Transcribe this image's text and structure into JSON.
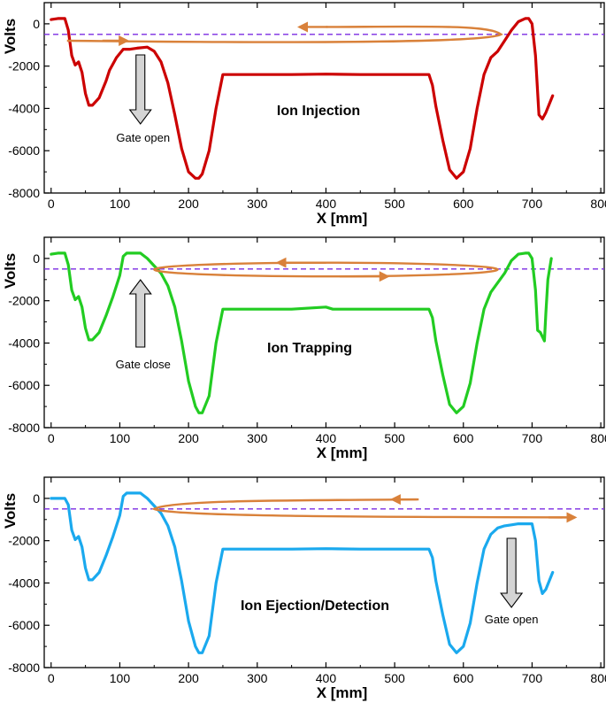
{
  "colors": {
    "injection": "#cc0000",
    "trapping": "#22cc22",
    "ejection": "#1aa9ee",
    "dashed_reference": "#7b2be2",
    "ion_path": "#d9813a",
    "gate_arrow_fill": "#d4d4d4"
  },
  "chart_data": [
    {
      "type": "line",
      "panel_label": "Ion Injection",
      "xlabel": "X [mm]",
      "ylabel": "Volts",
      "xlim": [
        -10,
        805
      ],
      "ylim": [
        -8000,
        1000
      ],
      "xticks": [
        0,
        100,
        200,
        300,
        400,
        500,
        600,
        700,
        800
      ],
      "yticks": [
        0,
        -2000,
        -4000,
        -6000,
        -8000
      ],
      "xtick_labels": [
        "0",
        "100",
        "200",
        "300",
        "400",
        "500",
        "600",
        "700",
        "800"
      ],
      "ytick_labels": [
        "0",
        "-2000",
        "-4000",
        "-6000",
        "-8000"
      ],
      "reference_line_y": -500,
      "gate_note": {
        "text": "Gate open",
        "direction": "down",
        "x": 130
      },
      "ion_path": {
        "shape": "turnaround-right",
        "start_x": 0,
        "start_y": -800,
        "end_x": 400,
        "end_y": -150,
        "turn_x": 655
      },
      "series": [
        {
          "x": [
            0,
            10,
            20,
            25,
            30,
            35,
            40,
            45,
            50,
            55,
            60,
            70,
            80,
            85,
            95,
            105,
            115,
            125,
            140,
            150,
            160,
            170,
            180,
            190,
            200,
            210,
            215,
            220,
            230,
            240,
            250,
            260,
            300,
            350,
            400,
            450,
            500,
            550,
            555,
            560,
            570,
            580,
            590,
            600,
            610,
            620,
            630,
            640,
            650,
            660,
            670,
            680,
            690,
            695,
            700,
            705,
            710,
            715,
            720,
            730
          ],
          "y": [
            200,
            250,
            250,
            -300,
            -1500,
            -1950,
            -1800,
            -2300,
            -3300,
            -3850,
            -3850,
            -3500,
            -2700,
            -2200,
            -1600,
            -1200,
            -1200,
            -1150,
            -1100,
            -1300,
            -1800,
            -2800,
            -4300,
            -5900,
            -7000,
            -7300,
            -7300,
            -7100,
            -6000,
            -4000,
            -2400,
            -2400,
            -2400,
            -2400,
            -2380,
            -2400,
            -2400,
            -2400,
            -2900,
            -3900,
            -5500,
            -6900,
            -7300,
            -7000,
            -5900,
            -4000,
            -2400,
            -1600,
            -1300,
            -800,
            -300,
            100,
            250,
            250,
            0,
            -1500,
            -4300,
            -4500,
            -4200,
            -3400
          ]
        }
      ]
    },
    {
      "type": "line",
      "panel_label": "Ion Trapping",
      "xlabel": "X [mm]",
      "ylabel": "Volts",
      "xlim": [
        -10,
        805
      ],
      "ylim": [
        -8000,
        1000
      ],
      "xticks": [
        0,
        100,
        200,
        300,
        400,
        500,
        600,
        700,
        800
      ],
      "yticks": [
        0,
        -2000,
        -4000,
        -6000,
        -8000
      ],
      "xtick_labels": [
        "0",
        "100",
        "200",
        "300",
        "400",
        "500",
        "600",
        "700",
        "800"
      ],
      "ytick_labels": [
        "0",
        "-2000",
        "-4000",
        "-6000",
        "-8000"
      ],
      "reference_line_y": -500,
      "gate_note": {
        "text": "Gate close",
        "direction": "up",
        "x": 130
      },
      "ion_path": {
        "shape": "closed-loop",
        "x_min": 150,
        "x_max": 650,
        "y_top": -200,
        "y_bottom": -850
      },
      "series": [
        {
          "x": [
            0,
            10,
            20,
            25,
            30,
            35,
            40,
            45,
            50,
            55,
            60,
            70,
            80,
            90,
            100,
            105,
            110,
            120,
            130,
            140,
            160,
            170,
            180,
            190,
            200,
            210,
            215,
            220,
            230,
            240,
            250,
            260,
            300,
            350,
            400,
            410,
            450,
            500,
            550,
            555,
            560,
            570,
            580,
            590,
            600,
            610,
            620,
            630,
            640,
            660,
            670,
            680,
            690,
            695,
            700,
            705,
            708,
            712,
            715,
            718,
            720,
            723,
            728
          ],
          "y": [
            200,
            250,
            250,
            -300,
            -1500,
            -1950,
            -1800,
            -2300,
            -3300,
            -3850,
            -3850,
            -3500,
            -2700,
            -1800,
            -800,
            100,
            250,
            250,
            250,
            0,
            -700,
            -1300,
            -2300,
            -3900,
            -5800,
            -7000,
            -7300,
            -7300,
            -6500,
            -4000,
            -2400,
            -2400,
            -2400,
            -2400,
            -2300,
            -2400,
            -2400,
            -2400,
            -2400,
            -2800,
            -3900,
            -5500,
            -6900,
            -7300,
            -7000,
            -5900,
            -4000,
            -2400,
            -1600,
            -700,
            -100,
            200,
            250,
            250,
            0,
            -1500,
            -3400,
            -3500,
            -3700,
            -3900,
            -2600,
            -1000,
            0
          ]
        }
      ]
    },
    {
      "type": "line",
      "panel_label": "Ion Ejection/Detection",
      "xlabel": "X [mm]",
      "ylabel": "Volts",
      "xlim": [
        -10,
        805
      ],
      "ylim": [
        -8000,
        1000
      ],
      "xticks": [
        0,
        100,
        200,
        300,
        400,
        500,
        600,
        700,
        800
      ],
      "yticks": [
        0,
        -2000,
        -4000,
        -6000,
        -8000
      ],
      "xtick_labels": [
        "0",
        "100",
        "200",
        "300",
        "400",
        "500",
        "600",
        "700",
        "800"
      ],
      "ytick_labels": [
        "0",
        "-2000",
        "-4000",
        "-6000",
        "-8000"
      ],
      "reference_line_y": -500,
      "gate_note": {
        "text": "Gate open",
        "direction": "down",
        "x": 670
      },
      "ion_path": {
        "shape": "turnaround-left",
        "start_x": 535,
        "start_y": -50,
        "end_x": 760,
        "end_y": -900,
        "turn_x": 150
      },
      "series": [
        {
          "x": [
            0,
            10,
            20,
            25,
            30,
            35,
            40,
            45,
            50,
            55,
            60,
            70,
            80,
            90,
            100,
            105,
            110,
            120,
            130,
            140,
            160,
            170,
            180,
            190,
            200,
            210,
            215,
            220,
            230,
            240,
            250,
            260,
            300,
            350,
            400,
            450,
            500,
            550,
            555,
            560,
            570,
            580,
            590,
            600,
            610,
            620,
            630,
            640,
            650,
            660,
            670,
            680,
            690,
            700,
            705,
            710,
            715,
            720,
            730
          ],
          "y": [
            0,
            0,
            0,
            -300,
            -1500,
            -1950,
            -1800,
            -2300,
            -3300,
            -3850,
            -3850,
            -3500,
            -2700,
            -1800,
            -800,
            100,
            250,
            250,
            250,
            0,
            -700,
            -1300,
            -2300,
            -3900,
            -5800,
            -7000,
            -7300,
            -7300,
            -6500,
            -4000,
            -2400,
            -2400,
            -2400,
            -2400,
            -2380,
            -2400,
            -2400,
            -2400,
            -2800,
            -3900,
            -5500,
            -6900,
            -7300,
            -7000,
            -5900,
            -4000,
            -2400,
            -1700,
            -1400,
            -1300,
            -1250,
            -1200,
            -1200,
            -1200,
            -2000,
            -3900,
            -4500,
            -4300,
            -3500
          ]
        }
      ]
    }
  ]
}
